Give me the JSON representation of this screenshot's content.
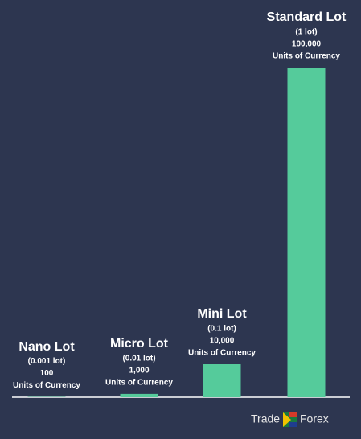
{
  "chart_data": {
    "type": "bar",
    "categories": [
      "Nano Lot",
      "Micro Lot",
      "Mini Lot",
      "Standard Lot"
    ],
    "lot_sizes": [
      "(0.001 lot)",
      "(0.01 lot)",
      "(0.1 lot)",
      "(1 lot)"
    ],
    "values": [
      100,
      1000,
      10000,
      100000
    ],
    "value_labels": [
      "100",
      "1,000",
      "10,000",
      "100,000"
    ],
    "unit_label": "Units of Currency",
    "color": "#55cb9b",
    "brand": [
      "Trade",
      "Forex"
    ]
  }
}
